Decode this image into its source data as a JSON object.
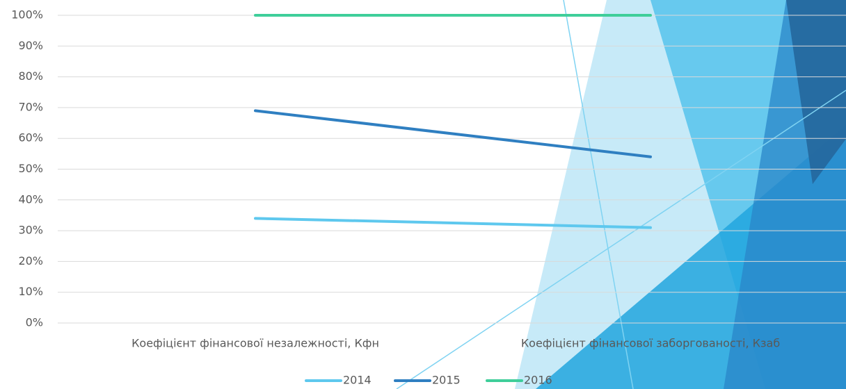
{
  "chart_data": {
    "type": "line",
    "categories": [
      "Коефіцієнт фінансової незалежності, Кфн",
      "Коефіцієнт фінансової заборгованості, Кзаб"
    ],
    "series": [
      {
        "name": "2014",
        "color": "#5ec8ee",
        "values": [
          34,
          31
        ]
      },
      {
        "name": "2015",
        "color": "#2f7fc1",
        "values": [
          69,
          54
        ]
      },
      {
        "name": "2016",
        "color": "#3fce9a",
        "values": [
          100,
          100
        ]
      }
    ],
    "ylim": [
      0,
      100
    ],
    "yticks": [
      {
        "value": 0,
        "label": "0%"
      },
      {
        "value": 10,
        "label": "10%"
      },
      {
        "value": 20,
        "label": "20%"
      },
      {
        "value": 30,
        "label": "30%"
      },
      {
        "value": 40,
        "label": "40%"
      },
      {
        "value": 50,
        "label": "50%"
      },
      {
        "value": 60,
        "label": "60%"
      },
      {
        "value": 70,
        "label": "70%"
      },
      {
        "value": 80,
        "label": "80%"
      },
      {
        "value": 90,
        "label": "90%"
      },
      {
        "value": 100,
        "label": "100%"
      }
    ],
    "grid": true,
    "legend": "bottom"
  }
}
